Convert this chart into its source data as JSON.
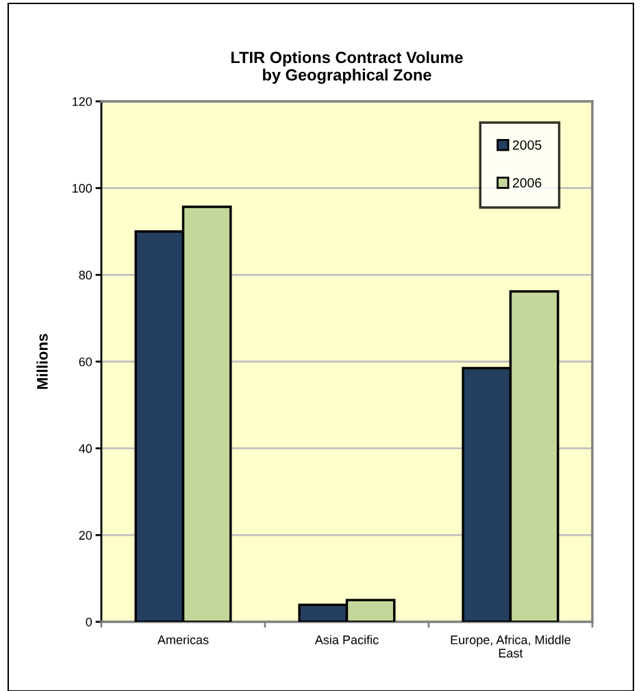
{
  "chart_data": {
    "type": "bar",
    "title": "LTIR Options Contract Volume\nby Geographical Zone",
    "ylabel": "Millions",
    "categories": [
      "Americas",
      "Asia Pacific",
      "Europe, Africa, Middle\nEast"
    ],
    "series": [
      {
        "name": "2005",
        "color": "#243f60",
        "values": [
          90,
          3.9,
          58.5
        ]
      },
      {
        "name": "2006",
        "color": "#c4d79b",
        "values": [
          95.7,
          5.0,
          76.2
        ]
      }
    ],
    "ylim": [
      0,
      120
    ],
    "yticks": [
      0,
      20,
      40,
      60,
      80,
      100,
      120
    ],
    "grid": "y",
    "legend": "top right"
  }
}
